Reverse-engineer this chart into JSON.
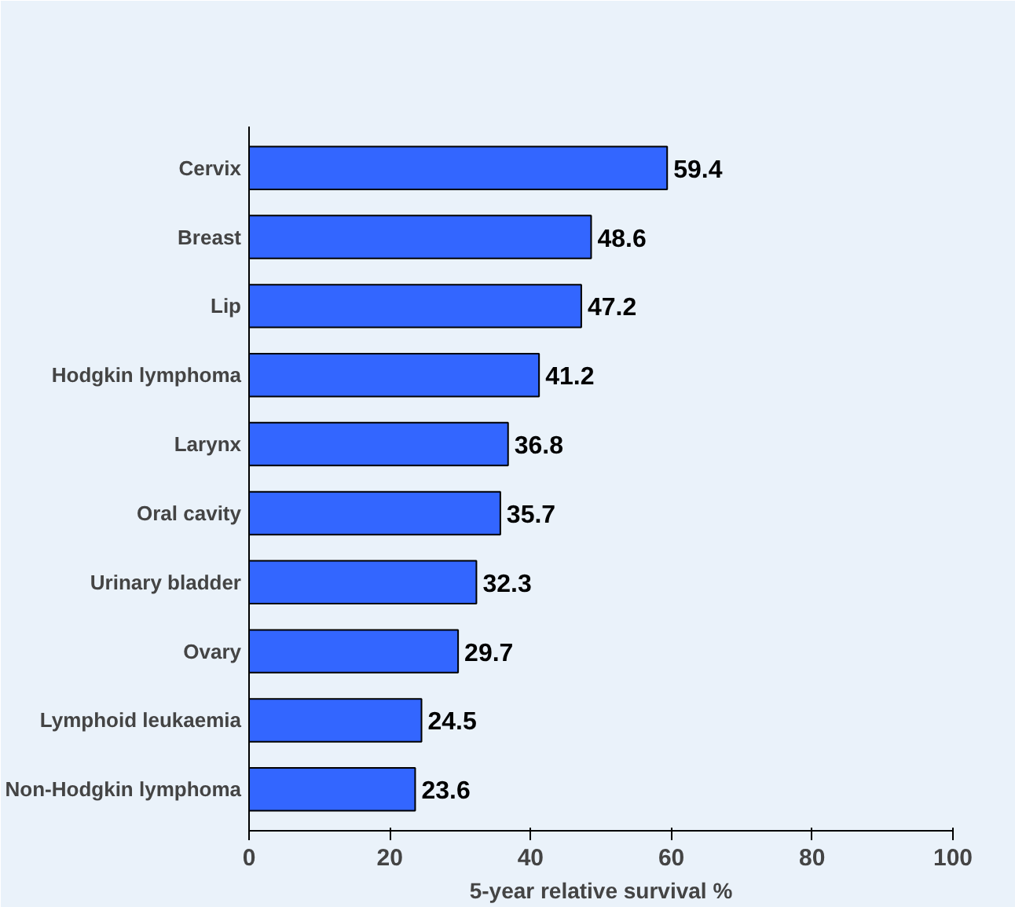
{
  "chart_data": {
    "type": "bar",
    "orientation": "horizontal",
    "xlabel": "5-year relative survival %",
    "categories": [
      "Cervix",
      "Breast",
      "Lip",
      "Hodgkin lymphoma",
      "Larynx",
      "Oral cavity",
      "Urinary bladder",
      "Ovary",
      "Lymphoid leukaemia",
      "Non-Hodgkin lymphoma"
    ],
    "values": [
      59.4,
      48.6,
      47.2,
      41.2,
      36.8,
      35.7,
      32.3,
      29.7,
      24.5,
      23.6
    ],
    "color": "#3366ff",
    "xlim": [
      0,
      100
    ],
    "xticks": [
      0,
      20,
      40,
      60,
      80,
      100
    ],
    "grid": false,
    "data_labels": true
  }
}
